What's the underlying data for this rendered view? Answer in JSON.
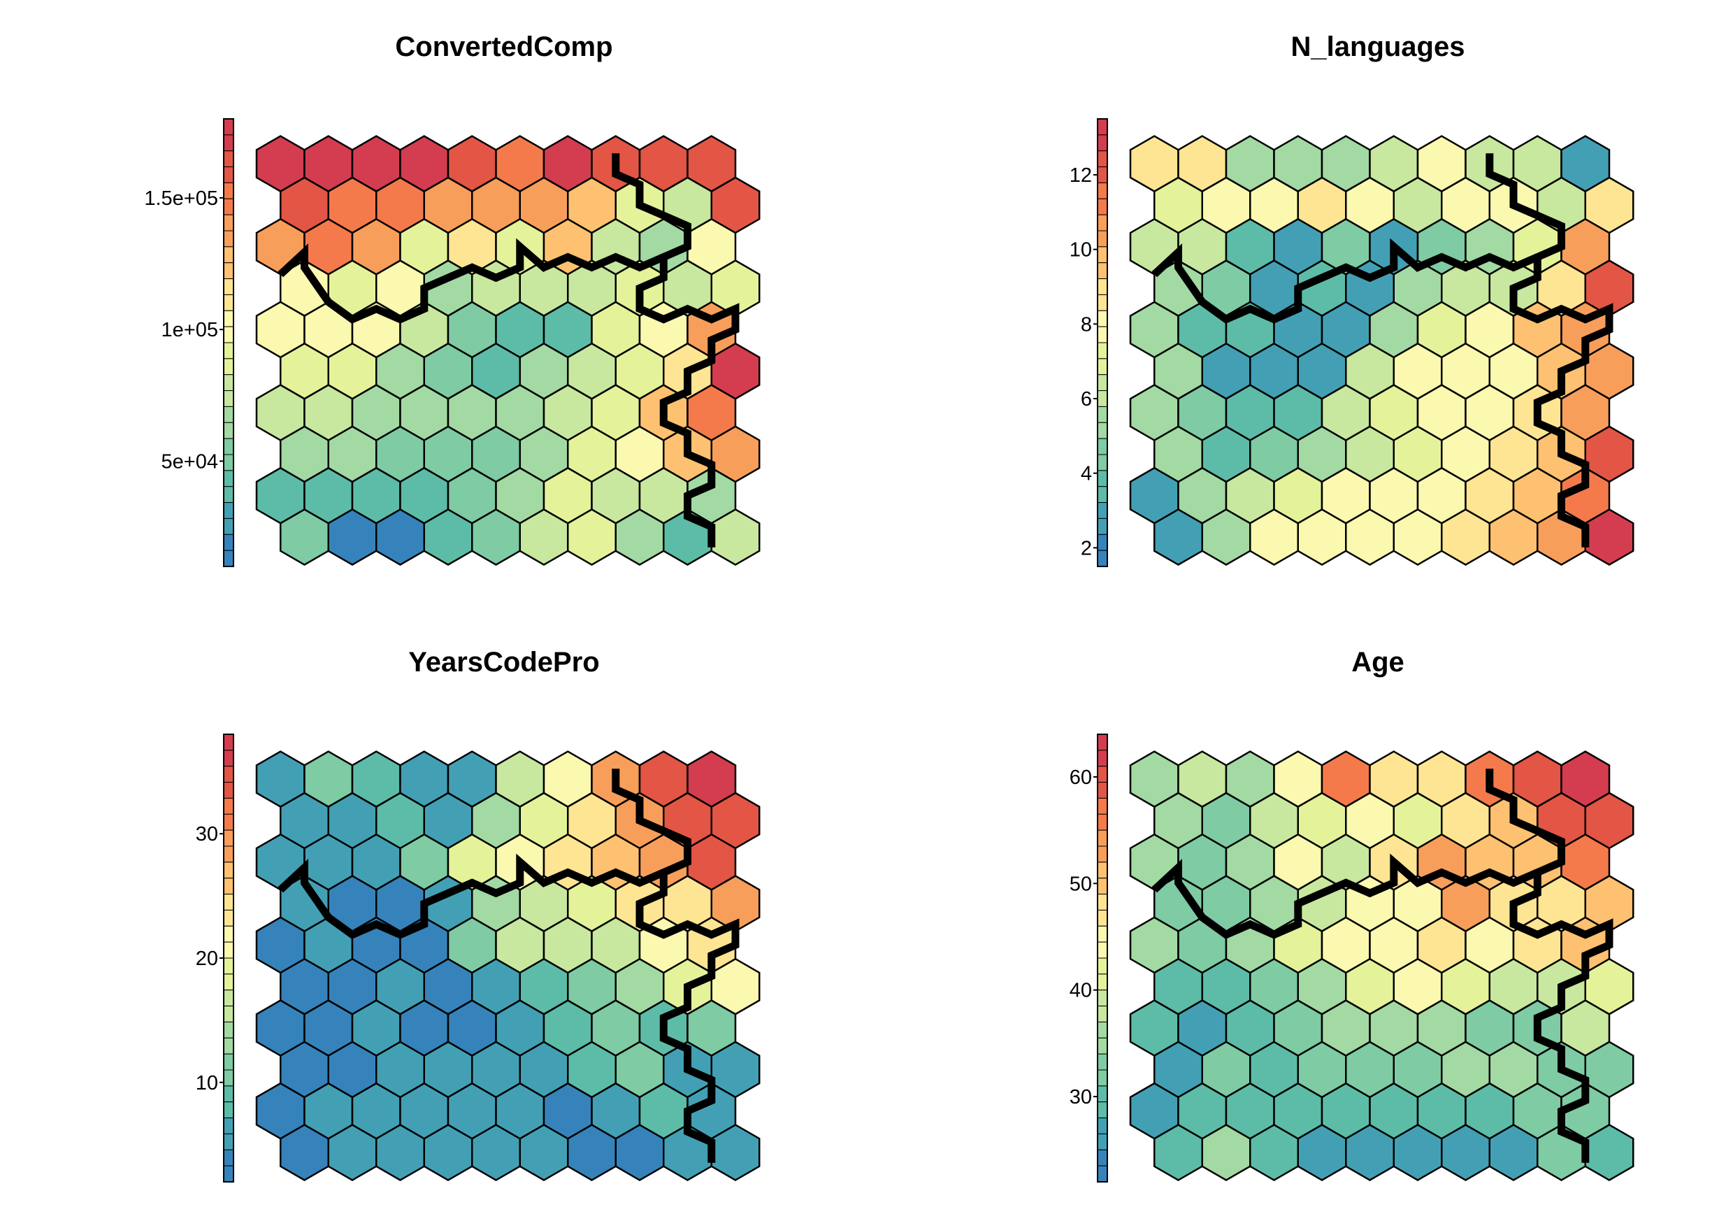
{
  "chart_data": [
    {
      "type": "heatmap",
      "title": "ConvertedComp",
      "legend_ticks": [
        "5e+04",
        "1e+05",
        "1.5e+05"
      ],
      "legend_tick_values": [
        50000,
        100000,
        150000
      ],
      "value_range": [
        10000,
        180000
      ],
      "grid": {
        "rows": 10,
        "cols": 10,
        "values": [
          [
            52000,
            20000,
            20000,
            40000,
            55000,
            80000,
            90000,
            65000,
            40000,
            80000
          ],
          [
            45000,
            37000,
            42000,
            40000,
            50000,
            70000,
            90000,
            80000,
            75000,
            70000
          ],
          [
            60000,
            62000,
            55000,
            58000,
            55000,
            60000,
            88000,
            100000,
            120000,
            135000
          ],
          [
            75000,
            80000,
            70000,
            66000,
            66000,
            65000,
            75000,
            88000,
            125000,
            145000
          ],
          [
            90000,
            92000,
            60000,
            55000,
            45000,
            70000,
            75000,
            90000,
            110000,
            175000
          ],
          [
            100000,
            105000,
            95000,
            75000,
            50000,
            45000,
            40000,
            90000,
            100000,
            140000
          ],
          [
            100000,
            85000,
            105000,
            70000,
            80000,
            75000,
            75000,
            85000,
            80000,
            90000
          ],
          [
            135000,
            145000,
            140000,
            90000,
            110000,
            85000,
            125000,
            80000,
            60000,
            95000
          ],
          [
            160000,
            155000,
            150000,
            140000,
            140000,
            135000,
            130000,
            90000,
            80000,
            165000
          ],
          [
            170000,
            175000,
            180000,
            170000,
            160000,
            155000,
            172000,
            165000,
            165000,
            165000
          ]
        ]
      }
    },
    {
      "type": "heatmap",
      "title": "N_languages",
      "legend_ticks": [
        "2",
        "4",
        "6",
        "8",
        "10",
        "12"
      ],
      "legend_tick_values": [
        2,
        4,
        6,
        8,
        10,
        12
      ],
      "value_range": [
        1.5,
        13.5
      ],
      "grid": {
        "rows": 10,
        "cols": 10,
        "values": [
          [
            2.5,
            5.0,
            8.0,
            8.0,
            8.0,
            8.0,
            9.0,
            10.0,
            10.5,
            13.0
          ],
          [
            2.5,
            5.0,
            6.0,
            7.0,
            7.5,
            7.5,
            8.0,
            8.5,
            10.0,
            11.0
          ],
          [
            5.0,
            4.0,
            4.5,
            5.5,
            6.5,
            7.0,
            7.5,
            8.5,
            10.0,
            12.0
          ],
          [
            5.0,
            4.5,
            3.5,
            4.0,
            6.0,
            7.0,
            7.5,
            8.0,
            9.0,
            10.5
          ],
          [
            5.0,
            3.0,
            2.5,
            2.5,
            6.0,
            7.5,
            7.5,
            7.5,
            10.0,
            10.5
          ],
          [
            5.0,
            4.0,
            4.0,
            2.5,
            2.5,
            5.0,
            7.0,
            8.0,
            10.0,
            10.5
          ],
          [
            5.5,
            4.5,
            2.5,
            4.0,
            2.5,
            5.0,
            6.0,
            6.5,
            9.0,
            12.0
          ],
          [
            6.0,
            6.5,
            3.5,
            2.5,
            4.5,
            2.5,
            4.5,
            5.5,
            7.0,
            10.5
          ],
          [
            7.0,
            8.0,
            8.0,
            8.5,
            8.0,
            6.5,
            7.5,
            8.0,
            6.0,
            9.0
          ],
          [
            9.0,
            8.5,
            5.0,
            5.0,
            5.5,
            6.5,
            8.0,
            6.0,
            6.0,
            2.5
          ]
        ]
      }
    },
    {
      "type": "heatmap",
      "title": "YearsCodePro",
      "legend_ticks": [
        "10",
        "20",
        "30"
      ],
      "legend_tick_values": [
        10,
        20,
        30
      ],
      "value_range": [
        2,
        38
      ],
      "grid": {
        "rows": 10,
        "cols": 10,
        "values": [
          [
            4,
            6,
            6.5,
            5,
            5,
            5,
            4,
            4,
            6,
            6.5
          ],
          [
            4,
            5,
            6,
            7,
            6.5,
            5,
            4.5,
            6.5,
            8,
            6
          ],
          [
            4,
            4,
            5,
            5,
            5,
            7,
            8,
            10,
            5,
            6
          ],
          [
            4,
            4.5,
            5,
            4,
            4,
            6.5,
            7.5,
            11,
            9,
            12
          ],
          [
            4,
            4,
            5,
            4,
            5,
            8,
            10,
            14,
            18,
            20
          ],
          [
            4,
            5,
            3,
            3,
            11,
            15,
            16,
            16,
            22,
            24
          ],
          [
            6.5,
            4,
            3,
            7,
            14,
            16,
            18,
            23,
            25,
            28
          ],
          [
            5,
            5.5,
            6,
            11,
            18,
            22,
            24,
            26,
            30,
            33
          ],
          [
            5,
            7,
            8,
            7,
            13,
            18,
            23,
            28,
            33,
            35
          ],
          [
            6,
            11,
            8,
            7,
            6,
            16,
            20,
            28,
            34,
            37
          ]
        ]
      }
    },
    {
      "type": "heatmap",
      "title": "Age",
      "legend_ticks": [
        "30",
        "40",
        "50",
        "60"
      ],
      "legend_tick_values": [
        30,
        40,
        50,
        60
      ],
      "value_range": [
        22,
        64
      ],
      "grid": {
        "rows": 10,
        "cols": 10,
        "values": [
          [
            28,
            34,
            30,
            26,
            26,
            26,
            27,
            26,
            32,
            30
          ],
          [
            27,
            28,
            30,
            28,
            28,
            29,
            28,
            30,
            32,
            32
          ],
          [
            26,
            31,
            30,
            31,
            32,
            32,
            34,
            34,
            33,
            31
          ],
          [
            28,
            25,
            30,
            32,
            36,
            35,
            36,
            33,
            33,
            37
          ],
          [
            29,
            30,
            33,
            35,
            42,
            43,
            40,
            38,
            38,
            42
          ],
          [
            34,
            31,
            34,
            42,
            44,
            45,
            46,
            44,
            46,
            50
          ],
          [
            33,
            32,
            35,
            37,
            44,
            45,
            52,
            46,
            46,
            50
          ],
          [
            36,
            33,
            36,
            43,
            38,
            48,
            52,
            49,
            49,
            57
          ],
          [
            36,
            33,
            38,
            40,
            44,
            42,
            46,
            50,
            58,
            60
          ],
          [
            34,
            38,
            34,
            44,
            55,
            46,
            48,
            56,
            58,
            64
          ]
        ]
      }
    }
  ],
  "palette": [
    "#3683bb",
    "#43a0b4",
    "#5dbca7",
    "#7ecba4",
    "#a3d9a3",
    "#c7e89e",
    "#e4f29a",
    "#fbf8b0",
    "#fee593",
    "#fdc171",
    "#f89e5b",
    "#f47a4b",
    "#e35545",
    "#d43d4f"
  ]
}
